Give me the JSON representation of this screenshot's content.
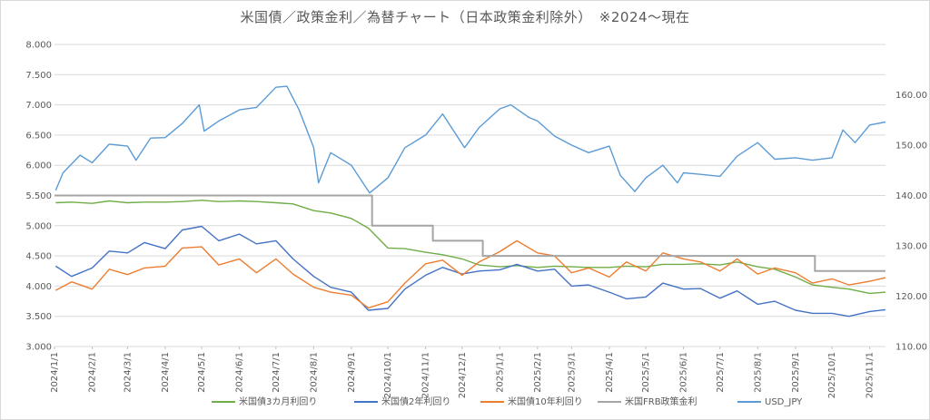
{
  "chart_data": {
    "type": "line",
    "title": "米国債／政策金利／為替チャート（日本政策金利除外）　※2024～現在",
    "y_left": {
      "min": 3.0,
      "max": 8.0,
      "ticks": [
        "3.000",
        "3.500",
        "4.000",
        "4.500",
        "5.000",
        "5.500",
        "6.000",
        "6.500",
        "7.000",
        "7.500",
        "8.000"
      ]
    },
    "y_right": {
      "min": 110,
      "max": 170,
      "ticks": [
        "110.00",
        "120.00",
        "130.00",
        "140.00",
        "150.00",
        "160.00"
      ]
    },
    "x_range": [
      "2024/1/1",
      "2025/11/14"
    ],
    "x_ticks": [
      "2024/1/1",
      "2024/2/1",
      "2024/3/1",
      "2024/4/1",
      "2024/5/1",
      "2024/6/1",
      "2024/7/1",
      "2024/8/1",
      "2024/9/1",
      "2024/10/1",
      "2024/11/1",
      "2024/12/1",
      "2025/1/1",
      "2025/2/1",
      "2025/3/1",
      "2025/4/1",
      "2025/5/1",
      "2025/6/1",
      "2025/7/1",
      "2025/8/1",
      "2025/9/1",
      "2025/10/1",
      "2025/11/1"
    ],
    "grid": true,
    "legend_position": "bottom",
    "colors": {
      "3m": "#70ad47",
      "2y": "#4472c4",
      "10y": "#ed7d31",
      "ffr": "#a5a5a5",
      "usdjpy": "#5b9bd5"
    },
    "series": [
      {
        "key": "3m",
        "name": "米国債3カ月利回り",
        "axis": "left",
        "points": [
          [
            "2024/1/2",
            5.38
          ],
          [
            "2024/1/15",
            5.39
          ],
          [
            "2024/2/1",
            5.37
          ],
          [
            "2024/2/15",
            5.41
          ],
          [
            "2024/3/1",
            5.38
          ],
          [
            "2024/3/15",
            5.39
          ],
          [
            "2024/4/1",
            5.39
          ],
          [
            "2024/4/15",
            5.4
          ],
          [
            "2024/5/1",
            5.42
          ],
          [
            "2024/5/15",
            5.4
          ],
          [
            "2024/6/1",
            5.41
          ],
          [
            "2024/6/15",
            5.4
          ],
          [
            "2024/7/1",
            5.38
          ],
          [
            "2024/7/15",
            5.36
          ],
          [
            "2024/8/1",
            5.25
          ],
          [
            "2024/8/15",
            5.21
          ],
          [
            "2024/9/1",
            5.12
          ],
          [
            "2024/9/15",
            4.96
          ],
          [
            "2024/10/1",
            4.63
          ],
          [
            "2024/10/15",
            4.62
          ],
          [
            "2024/11/1",
            4.56
          ],
          [
            "2024/11/15",
            4.52
          ],
          [
            "2024/12/1",
            4.45
          ],
          [
            "2024/12/15",
            4.35
          ],
          [
            "2025/1/1",
            4.32
          ],
          [
            "2025/1/15",
            4.34
          ],
          [
            "2025/2/1",
            4.31
          ],
          [
            "2025/2/15",
            4.33
          ],
          [
            "2025/3/1",
            4.32
          ],
          [
            "2025/3/15",
            4.31
          ],
          [
            "2025/4/1",
            4.31
          ],
          [
            "2025/4/15",
            4.33
          ],
          [
            "2025/5/1",
            4.32
          ],
          [
            "2025/5/15",
            4.36
          ],
          [
            "2025/6/1",
            4.36
          ],
          [
            "2025/6/15",
            4.37
          ],
          [
            "2025/7/1",
            4.35
          ],
          [
            "2025/7/15",
            4.4
          ],
          [
            "2025/8/1",
            4.32
          ],
          [
            "2025/8/15",
            4.28
          ],
          [
            "2025/9/1",
            4.15
          ],
          [
            "2025/9/15",
            4.02
          ],
          [
            "2025/10/1",
            3.98
          ],
          [
            "2025/10/15",
            3.95
          ],
          [
            "2025/11/1",
            3.88
          ],
          [
            "2025/11/14",
            3.9
          ]
        ]
      },
      {
        "key": "2y",
        "name": "米国債2年利回り",
        "axis": "left",
        "points": [
          [
            "2024/1/2",
            4.33
          ],
          [
            "2024/1/15",
            4.16
          ],
          [
            "2024/2/1",
            4.3
          ],
          [
            "2024/2/15",
            4.58
          ],
          [
            "2024/3/1",
            4.55
          ],
          [
            "2024/3/15",
            4.72
          ],
          [
            "2024/4/1",
            4.62
          ],
          [
            "2024/4/15",
            4.93
          ],
          [
            "2024/5/1",
            4.99
          ],
          [
            "2024/5/15",
            4.75
          ],
          [
            "2024/6/1",
            4.86
          ],
          [
            "2024/6/15",
            4.7
          ],
          [
            "2024/7/1",
            4.75
          ],
          [
            "2024/7/15",
            4.45
          ],
          [
            "2024/8/1",
            4.16
          ],
          [
            "2024/8/15",
            3.98
          ],
          [
            "2024/9/1",
            3.9
          ],
          [
            "2024/9/15",
            3.6
          ],
          [
            "2024/10/1",
            3.63
          ],
          [
            "2024/10/15",
            3.95
          ],
          [
            "2024/11/1",
            4.18
          ],
          [
            "2024/11/15",
            4.31
          ],
          [
            "2024/12/1",
            4.2
          ],
          [
            "2024/12/15",
            4.25
          ],
          [
            "2025/1/1",
            4.27
          ],
          [
            "2025/1/15",
            4.36
          ],
          [
            "2025/2/1",
            4.25
          ],
          [
            "2025/2/15",
            4.28
          ],
          [
            "2025/3/1",
            4.0
          ],
          [
            "2025/3/15",
            4.02
          ],
          [
            "2025/4/1",
            3.9
          ],
          [
            "2025/4/15",
            3.79
          ],
          [
            "2025/5/1",
            3.82
          ],
          [
            "2025/5/15",
            4.05
          ],
          [
            "2025/6/1",
            3.95
          ],
          [
            "2025/6/15",
            3.96
          ],
          [
            "2025/7/1",
            3.8
          ],
          [
            "2025/7/15",
            3.92
          ],
          [
            "2025/8/1",
            3.7
          ],
          [
            "2025/8/15",
            3.75
          ],
          [
            "2025/9/1",
            3.6
          ],
          [
            "2025/9/15",
            3.55
          ],
          [
            "2025/10/1",
            3.55
          ],
          [
            "2025/10/15",
            3.5
          ],
          [
            "2025/11/1",
            3.58
          ],
          [
            "2025/11/14",
            3.61
          ]
        ]
      },
      {
        "key": "10y",
        "name": "米国債10年利回り",
        "axis": "left",
        "points": [
          [
            "2024/1/2",
            3.93
          ],
          [
            "2024/1/15",
            4.07
          ],
          [
            "2024/2/1",
            3.95
          ],
          [
            "2024/2/15",
            4.28
          ],
          [
            "2024/3/1",
            4.19
          ],
          [
            "2024/3/15",
            4.3
          ],
          [
            "2024/4/1",
            4.33
          ],
          [
            "2024/4/15",
            4.63
          ],
          [
            "2024/5/1",
            4.65
          ],
          [
            "2024/5/15",
            4.35
          ],
          [
            "2024/6/1",
            4.45
          ],
          [
            "2024/6/15",
            4.22
          ],
          [
            "2024/7/1",
            4.45
          ],
          [
            "2024/7/15",
            4.2
          ],
          [
            "2024/8/1",
            3.98
          ],
          [
            "2024/8/15",
            3.9
          ],
          [
            "2024/9/1",
            3.85
          ],
          [
            "2024/9/15",
            3.64
          ],
          [
            "2024/10/1",
            3.74
          ],
          [
            "2024/10/15",
            4.05
          ],
          [
            "2024/11/1",
            4.37
          ],
          [
            "2024/11/15",
            4.43
          ],
          [
            "2024/12/1",
            4.18
          ],
          [
            "2024/12/15",
            4.4
          ],
          [
            "2025/1/1",
            4.57
          ],
          [
            "2025/1/15",
            4.75
          ],
          [
            "2025/2/1",
            4.55
          ],
          [
            "2025/2/15",
            4.5
          ],
          [
            "2025/3/1",
            4.22
          ],
          [
            "2025/3/15",
            4.3
          ],
          [
            "2025/4/1",
            4.15
          ],
          [
            "2025/4/15",
            4.4
          ],
          [
            "2025/5/1",
            4.25
          ],
          [
            "2025/5/15",
            4.55
          ],
          [
            "2025/6/1",
            4.45
          ],
          [
            "2025/6/15",
            4.4
          ],
          [
            "2025/7/1",
            4.25
          ],
          [
            "2025/7/15",
            4.45
          ],
          [
            "2025/8/1",
            4.2
          ],
          [
            "2025/8/15",
            4.3
          ],
          [
            "2025/9/1",
            4.22
          ],
          [
            "2025/9/15",
            4.05
          ],
          [
            "2025/10/1",
            4.12
          ],
          [
            "2025/10/15",
            4.02
          ],
          [
            "2025/11/1",
            4.08
          ],
          [
            "2025/11/14",
            4.14
          ]
        ]
      },
      {
        "key": "ffr",
        "name": "米国FRB政策金利",
        "axis": "left",
        "step": true,
        "points": [
          [
            "2024/1/1",
            5.5
          ],
          [
            "2024/9/18",
            5.0
          ],
          [
            "2024/11/7",
            4.75
          ],
          [
            "2024/12/18",
            4.5
          ],
          [
            "2025/9/17",
            4.25
          ],
          [
            "2025/11/14",
            4.25
          ]
        ]
      },
      {
        "key": "usdjpy",
        "name": "USD_JPY",
        "axis": "right",
        "points": [
          [
            "2024/1/2",
            141.0
          ],
          [
            "2024/1/8",
            144.5
          ],
          [
            "2024/1/22",
            148.0
          ],
          [
            "2024/2/1",
            146.5
          ],
          [
            "2024/2/15",
            150.2
          ],
          [
            "2024/3/1",
            149.8
          ],
          [
            "2024/3/8",
            147.0
          ],
          [
            "2024/3/20",
            151.4
          ],
          [
            "2024/4/1",
            151.5
          ],
          [
            "2024/4/15",
            154.3
          ],
          [
            "2024/4/29",
            158.0
          ],
          [
            "2024/5/3",
            152.8
          ],
          [
            "2024/5/15",
            154.8
          ],
          [
            "2024/6/1",
            157.0
          ],
          [
            "2024/6/15",
            157.5
          ],
          [
            "2024/7/1",
            161.5
          ],
          [
            "2024/7/10",
            161.7
          ],
          [
            "2024/7/20",
            157.0
          ],
          [
            "2024/8/1",
            149.5
          ],
          [
            "2024/8/5",
            142.5
          ],
          [
            "2024/8/15",
            148.5
          ],
          [
            "2024/9/1",
            146.0
          ],
          [
            "2024/9/16",
            140.5
          ],
          [
            "2024/10/1",
            143.5
          ],
          [
            "2024/10/15",
            149.5
          ],
          [
            "2024/11/1",
            152.0
          ],
          [
            "2024/11/15",
            156.2
          ],
          [
            "2024/12/3",
            149.5
          ],
          [
            "2024/12/15",
            153.5
          ],
          [
            "2025/1/1",
            157.2
          ],
          [
            "2025/1/10",
            158.0
          ],
          [
            "2025/1/25",
            155.5
          ],
          [
            "2025/2/1",
            154.8
          ],
          [
            "2025/2/15",
            151.8
          ],
          [
            "2025/3/1",
            150.0
          ],
          [
            "2025/3/15",
            148.5
          ],
          [
            "2025/4/1",
            149.8
          ],
          [
            "2025/4/10",
            144.0
          ],
          [
            "2025/4/22",
            140.8
          ],
          [
            "2025/5/1",
            143.5
          ],
          [
            "2025/5/15",
            146.0
          ],
          [
            "2025/5/27",
            142.5
          ],
          [
            "2025/6/1",
            144.5
          ],
          [
            "2025/6/15",
            144.2
          ],
          [
            "2025/7/1",
            143.8
          ],
          [
            "2025/7/15",
            147.8
          ],
          [
            "2025/8/1",
            150.5
          ],
          [
            "2025/8/15",
            147.2
          ],
          [
            "2025/9/1",
            147.5
          ],
          [
            "2025/9/15",
            147.0
          ],
          [
            "2025/10/1",
            147.5
          ],
          [
            "2025/10/10",
            153.0
          ],
          [
            "2025/10/20",
            150.5
          ],
          [
            "2025/11/1",
            154.0
          ],
          [
            "2025/11/14",
            154.6
          ]
        ]
      }
    ]
  }
}
